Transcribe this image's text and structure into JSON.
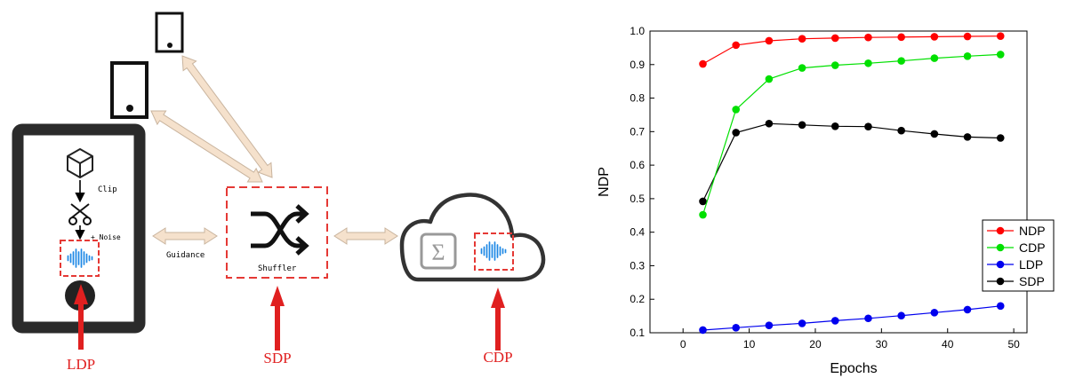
{
  "diagram": {
    "labels": {
      "clip": "Clip",
      "noise": "+ Noise",
      "guidance": "Guidance",
      "shuffler": "Shuffler",
      "sum_symbol": "Σ",
      "ldp": "LDP",
      "sdp": "SDP",
      "cdp": "CDP"
    },
    "colors": {
      "device_frame": "#2b2b2b",
      "dashed_box": "#e53935",
      "arrow_red": "#e02020",
      "arrow_beige": "#f5e1cc",
      "arrow_beige_stroke": "#c9b49e",
      "waveform": "#1e88e5",
      "label_red": "#e02020"
    },
    "icons": [
      "cube-icon",
      "scissors-icon",
      "waveform-icon",
      "shuffle-icon",
      "sigma-icon",
      "cloud-icon",
      "phone-icon"
    ]
  },
  "chart_data": {
    "type": "line",
    "xlabel": "Epochs",
    "ylabel": "NDP",
    "xlim": [
      -5,
      52
    ],
    "ylim": [
      0.1,
      1.0
    ],
    "xticks": [
      0,
      10,
      20,
      30,
      40,
      50
    ],
    "yticks": [
      0.1,
      0.2,
      0.3,
      0.4,
      0.5,
      0.6,
      0.7,
      0.8,
      0.9,
      1.0
    ],
    "xtick_labels": [
      "0",
      "10",
      "20",
      "30",
      "40",
      "50"
    ],
    "ytick_labels": [
      "0.1",
      "0.2",
      "0.3",
      "0.4",
      "0.5",
      "0.6",
      "0.7",
      "0.8",
      "0.9",
      "1.0"
    ],
    "legend_position": "right-middle",
    "x": [
      3,
      8,
      13,
      18,
      23,
      28,
      33,
      38,
      43,
      48
    ],
    "series": [
      {
        "name": "NDP",
        "color": "#ff0000",
        "values": [
          0.902,
          0.958,
          0.971,
          0.977,
          0.979,
          0.981,
          0.982,
          0.983,
          0.984,
          0.985
        ]
      },
      {
        "name": "CDP",
        "color": "#00e000",
        "values": [
          0.452,
          0.766,
          0.857,
          0.89,
          0.898,
          0.904,
          0.911,
          0.919,
          0.925,
          0.93
        ]
      },
      {
        "name": "LDP",
        "color": "#0000ee",
        "values": [
          0.108,
          0.115,
          0.122,
          0.128,
          0.136,
          0.143,
          0.151,
          0.16,
          0.169,
          0.18
        ]
      },
      {
        "name": "SDP",
        "color": "#000000",
        "values": [
          0.492,
          0.697,
          0.724,
          0.72,
          0.716,
          0.715,
          0.703,
          0.693,
          0.684,
          0.681
        ]
      }
    ]
  }
}
